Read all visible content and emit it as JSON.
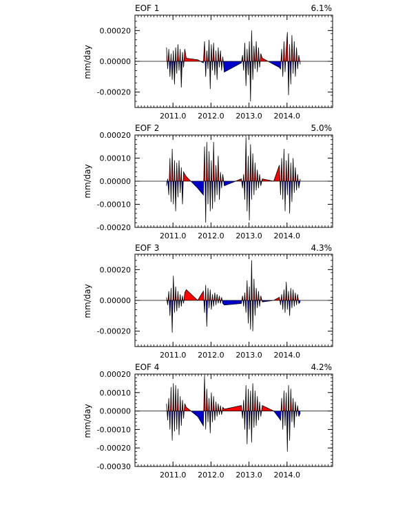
{
  "figure": {
    "background": "#ffffff",
    "positive_color": "#ff0000",
    "negative_color": "#0000cc"
  },
  "chart_data": [
    {
      "type": "area",
      "title": "EOF 1",
      "variance": "6.1%",
      "ylabel": "mm/day",
      "xlim": [
        2010.0,
        2015.2
      ],
      "ylim": [
        -0.0003,
        0.0003
      ],
      "yticks": [
        -0.0002,
        0.0,
        0.0002
      ],
      "ytick_labels": [
        "-0.00020",
        "0.00000",
        "0.00020"
      ],
      "xticks": [
        2011.0,
        2012.0,
        2013.0,
        2014.0
      ],
      "xtick_labels": [
        "2011.0",
        "2012.0",
        "2013.0",
        "2014.0"
      ],
      "x": [
        2010.83,
        2010.86,
        2010.89,
        2010.92,
        2010.95,
        2010.98,
        2011.01,
        2011.04,
        2011.07,
        2011.1,
        2011.13,
        2011.16,
        2011.19,
        2011.22,
        2011.25,
        2011.28,
        2011.31,
        2011.35,
        2011.65,
        2011.8,
        2011.83,
        2011.86,
        2011.89,
        2011.92,
        2011.95,
        2011.98,
        2012.01,
        2012.04,
        2012.07,
        2012.1,
        2012.13,
        2012.16,
        2012.19,
        2012.22,
        2012.25,
        2012.28,
        2012.31,
        2012.35,
        2012.8,
        2012.83,
        2012.86,
        2012.89,
        2012.92,
        2012.95,
        2012.98,
        2013.01,
        2013.04,
        2013.07,
        2013.1,
        2013.13,
        2013.16,
        2013.19,
        2013.22,
        2013.25,
        2013.28,
        2013.31,
        2013.35,
        2013.65,
        2013.8,
        2013.83,
        2013.86,
        2013.89,
        2013.92,
        2013.95,
        2013.98,
        2014.01,
        2014.04,
        2014.07,
        2014.1,
        2014.13,
        2014.16,
        2014.19,
        2014.22,
        2014.25,
        2014.28,
        2014.31,
        2014.35
      ],
      "y": [
        9e-05,
        -5e-05,
        8e-05,
        -0.0001,
        5e-05,
        -0.00012,
        7e-05,
        -0.00015,
        9e-05,
        -8e-05,
        0.00011,
        -6e-05,
        8e-05,
        -0.00017,
        6e-05,
        -4e-05,
        8e-05,
        2e-05,
        1e-05,
        -1e-05,
        0.00013,
        -0.0001,
        7e-05,
        -5e-05,
        0.00014,
        -0.00018,
        0.00011,
        -6e-05,
        0.00012,
        -9e-05,
        7e-05,
        -0.00012,
        9e-05,
        -4e-05,
        7e-05,
        -6e-05,
        3e-05,
        -7e-05,
        -1e-05,
        4e-05,
        -6e-05,
        0.00012,
        -0.00016,
        8e-05,
        -9e-05,
        0.00013,
        -0.00026,
        0.0002,
        -0.00012,
        0.0001,
        -5e-05,
        0.00013,
        -7e-05,
        9e-05,
        -4e-05,
        5e-05,
        2e-05,
        -2e-05,
        -4e-05,
        -5e-05,
        8e-05,
        -0.0001,
        0.00013,
        -7e-05,
        9e-05,
        0.00019,
        -0.00022,
        0.00011,
        -0.00015,
        0.00017,
        -8e-05,
        0.00013,
        -0.0001,
        9e-05,
        -5e-05,
        4e-05,
        -2e-05
      ]
    },
    {
      "type": "area",
      "title": "EOF 2",
      "variance": "5.0%",
      "ylabel": "mm/day",
      "xlim": [
        2010.0,
        2015.2
      ],
      "ylim": [
        -0.0002,
        0.0002
      ],
      "yticks": [
        -0.0002,
        -0.0001,
        0.0,
        0.0001,
        0.0002
      ],
      "ytick_labels": [
        "-0.00020",
        "-0.00010",
        "0.00000",
        "0.00010",
        "0.00020"
      ],
      "xticks": [
        2011.0,
        2012.0,
        2013.0,
        2014.0
      ],
      "xtick_labels": [
        "2011.0",
        "2012.0",
        "2013.0",
        "2014.0"
      ],
      "x": [
        2010.83,
        2010.86,
        2010.89,
        2010.92,
        2010.95,
        2010.98,
        2011.01,
        2011.04,
        2011.07,
        2011.1,
        2011.13,
        2011.16,
        2011.19,
        2011.22,
        2011.25,
        2011.28,
        2011.31,
        2011.35,
        2011.65,
        2011.8,
        2011.83,
        2011.86,
        2011.89,
        2011.92,
        2011.95,
        2011.98,
        2012.01,
        2012.04,
        2012.07,
        2012.1,
        2012.13,
        2012.16,
        2012.19,
        2012.22,
        2012.25,
        2012.28,
        2012.31,
        2012.35,
        2012.8,
        2012.83,
        2012.86,
        2012.89,
        2012.92,
        2012.95,
        2012.98,
        2013.01,
        2013.04,
        2013.07,
        2013.1,
        2013.13,
        2013.16,
        2013.19,
        2013.22,
        2013.25,
        2013.28,
        2013.31,
        2013.35,
        2013.65,
        2013.8,
        2013.83,
        2013.86,
        2013.89,
        2013.92,
        2013.95,
        2013.98,
        2014.01,
        2014.04,
        2014.07,
        2014.1,
        2014.13,
        2014.16,
        2014.19,
        2014.22,
        2014.25,
        2014.28,
        2014.31,
        2014.35
      ],
      "y": [
        -2e-05,
        1e-05,
        -6e-05,
        0.0001,
        -9e-05,
        0.00014,
        -0.0001,
        9e-05,
        -0.00013,
        8e-05,
        -7e-05,
        9e-05,
        -5e-05,
        6e-05,
        -0.0001,
        4e-05,
        3e-05,
        2e-05,
        -3e-05,
        -6e-05,
        0.00015,
        -0.00018,
        0.00017,
        -0.0001,
        0.00013,
        -0.00013,
        9e-05,
        -0.00012,
        0.00017,
        -9e-05,
        7e-05,
        -6e-05,
        0.00011,
        -8e-05,
        4e-05,
        -3e-05,
        3e-05,
        -2e-05,
        1e-05,
        -3e-05,
        3e-05,
        -8e-05,
        0.00019,
        -0.00013,
        0.00011,
        -0.00017,
        0.00016,
        -8e-05,
        0.00012,
        -6e-05,
        8e-05,
        -4e-05,
        5e-05,
        -3e-05,
        3e-05,
        -2e-05,
        1e-05,
        0.0,
        7e-05,
        -6e-05,
        0.0001,
        -8e-05,
        0.00014,
        -0.00013,
        9e-05,
        -6e-05,
        0.00012,
        -0.00014,
        8e-05,
        -9e-05,
        0.0001,
        -5e-05,
        6e-05,
        -4e-05,
        3e-05,
        -3e-05,
        1e-05
      ]
    },
    {
      "type": "area",
      "title": "EOF 3",
      "variance": "4.3%",
      "ylabel": "mm/day",
      "xlim": [
        2010.0,
        2015.2
      ],
      "ylim": [
        -0.0003,
        0.0003
      ],
      "yticks": [
        -0.0002,
        0.0,
        0.0002
      ],
      "ytick_labels": [
        "-0.00020",
        "0.00000",
        "0.00020"
      ],
      "xticks": [
        2011.0,
        2012.0,
        2013.0,
        2014.0
      ],
      "xtick_labels": [
        "2011.0",
        "2012.0",
        "2013.0",
        "2014.0"
      ],
      "x": [
        2010.83,
        2010.86,
        2010.89,
        2010.92,
        2010.95,
        2010.98,
        2011.01,
        2011.04,
        2011.07,
        2011.1,
        2011.13,
        2011.16,
        2011.19,
        2011.22,
        2011.25,
        2011.28,
        2011.31,
        2011.35,
        2011.65,
        2011.8,
        2011.83,
        2011.86,
        2011.89,
        2011.92,
        2011.95,
        2011.98,
        2012.01,
        2012.04,
        2012.07,
        2012.1,
        2012.13,
        2012.16,
        2012.19,
        2012.22,
        2012.25,
        2012.28,
        2012.31,
        2012.35,
        2012.8,
        2012.83,
        2012.86,
        2012.89,
        2012.92,
        2012.95,
        2012.98,
        2013.01,
        2013.04,
        2013.07,
        2013.1,
        2013.13,
        2013.16,
        2013.19,
        2013.22,
        2013.25,
        2013.28,
        2013.31,
        2013.35,
        2013.65,
        2013.8,
        2013.83,
        2013.86,
        2013.89,
        2013.92,
        2013.95,
        2013.98,
        2014.01,
        2014.04,
        2014.07,
        2014.1,
        2014.13,
        2014.16,
        2014.19,
        2014.22,
        2014.25,
        2014.28,
        2014.31,
        2014.35
      ],
      "y": [
        2e-05,
        -3e-05,
        6e-05,
        -0.0001,
        8e-05,
        -0.00021,
        0.00016,
        -8e-05,
        9e-05,
        -7e-05,
        6e-05,
        -5e-05,
        4e-05,
        -4e-05,
        3e-05,
        -2e-05,
        5e-05,
        7e-05,
        0.0,
        6e-05,
        -8e-05,
        0.0001,
        -0.00017,
        8e-05,
        -5e-05,
        7e-05,
        -6e-05,
        4e-05,
        -4e-05,
        5e-05,
        -3e-05,
        4e-05,
        -2e-05,
        3e-05,
        -2e-05,
        2e-05,
        -2e-05,
        -3e-05,
        -2e-05,
        3e-05,
        -4e-05,
        5e-05,
        -8e-05,
        0.00013,
        -0.00015,
        9e-05,
        -0.00019,
        0.00026,
        -0.0002,
        0.00014,
        -0.0001,
        8e-05,
        -5e-05,
        6e-05,
        -4e-05,
        3e-05,
        -1e-05,
        0.0,
        2e-05,
        -3e-05,
        4e-05,
        -6e-05,
        7e-05,
        -8e-05,
        0.00012,
        -6e-05,
        6e-05,
        -0.0001,
        8e-05,
        -5e-05,
        7e-05,
        -4e-05,
        5e-05,
        -3e-05,
        4e-05,
        -2e-05,
        -1e-05
      ]
    },
    {
      "type": "area",
      "title": "EOF 4",
      "variance": "4.2%",
      "ylabel": "mm/day",
      "xlim": [
        2010.0,
        2015.2
      ],
      "ylim": [
        -0.0003,
        0.0002
      ],
      "yticks": [
        -0.0003,
        -0.0002,
        -0.0001,
        0.0,
        0.0001,
        0.0002
      ],
      "ytick_labels": [
        "-0.00030",
        "-0.00020",
        "-0.00010",
        "0.00000",
        "0.00010",
        "0.00020"
      ],
      "xticks": [
        2011.0,
        2012.0,
        2013.0,
        2014.0
      ],
      "xtick_labels": [
        "2011.0",
        "2012.0",
        "2013.0",
        "2014.0"
      ],
      "x": [
        2010.83,
        2010.86,
        2010.89,
        2010.92,
        2010.95,
        2010.98,
        2011.01,
        2011.04,
        2011.07,
        2011.1,
        2011.13,
        2011.16,
        2011.19,
        2011.22,
        2011.25,
        2011.28,
        2011.31,
        2011.35,
        2011.65,
        2011.8,
        2011.83,
        2011.86,
        2011.89,
        2011.92,
        2011.95,
        2011.98,
        2012.01,
        2012.04,
        2012.07,
        2012.1,
        2012.13,
        2012.16,
        2012.19,
        2012.22,
        2012.25,
        2012.28,
        2012.31,
        2012.35,
        2012.8,
        2012.83,
        2012.86,
        2012.89,
        2012.92,
        2012.95,
        2012.98,
        2013.01,
        2013.04,
        2013.07,
        2013.1,
        2013.13,
        2013.16,
        2013.19,
        2013.22,
        2013.25,
        2013.28,
        2013.31,
        2013.35,
        2013.65,
        2013.8,
        2013.83,
        2013.86,
        2013.89,
        2013.92,
        2013.95,
        2013.98,
        2014.01,
        2014.04,
        2014.07,
        2014.1,
        2014.13,
        2014.16,
        2014.19,
        2014.22,
        2014.25,
        2014.28,
        2014.31,
        2014.35
      ],
      "y": [
        4e-05,
        -5e-05,
        7e-05,
        -0.0001,
        0.00013,
        -0.00016,
        0.00015,
        -0.00011,
        0.00014,
        -0.0001,
        0.00012,
        -0.00013,
        8e-05,
        -8e-05,
        6e-05,
        -4e-05,
        4e-05,
        2e-05,
        -3e-05,
        -8e-05,
        0.00019,
        -0.0001,
        0.00012,
        -6e-05,
        7e-05,
        -0.00012,
        0.0001,
        -6e-05,
        8e-05,
        -5e-05,
        5e-05,
        -3e-05,
        4e-05,
        -2e-05,
        3e-05,
        -2e-05,
        2e-05,
        1e-05,
        3e-05,
        -4e-05,
        6e-05,
        -0.0001,
        0.00014,
        -0.00018,
        0.00012,
        -0.0001,
        0.00011,
        -0.00017,
        0.00015,
        -9e-05,
        0.00011,
        -8e-05,
        8e-05,
        -5e-05,
        5e-05,
        -3e-05,
        3e-05,
        0.0,
        -4e-05,
        -5e-05,
        7e-05,
        -0.0001,
        0.00011,
        -8e-05,
        0.0001,
        -0.00022,
        0.00014,
        -0.00016,
        0.00012,
        -6e-05,
        7e-05,
        -9e-05,
        5e-05,
        -3e-05,
        3e-05,
        -3e-05,
        -1e-05
      ]
    }
  ]
}
